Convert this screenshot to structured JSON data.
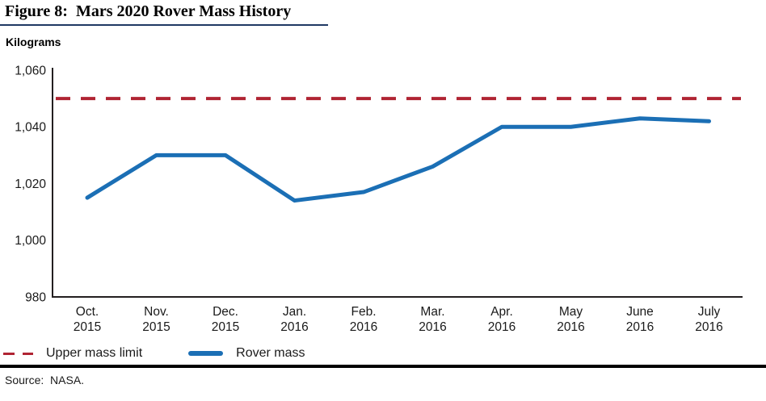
{
  "figure": {
    "title": "Figure 8:  Mars 2020 Rover Mass History",
    "unit_label": "Kilograms",
    "source": "Source:  NASA."
  },
  "legend": {
    "items": [
      {
        "label": "Upper mass limit",
        "style": "dashed",
        "color": "#b02433"
      },
      {
        "label": "Rover mass",
        "style": "solid",
        "color": "#1b6fb5"
      }
    ]
  },
  "colors": {
    "rover_mass_line": "#1b6fb5",
    "upper_mass_limit_line": "#b02433",
    "axis": "#231f20",
    "tick_text": "#1a1a1a",
    "title_rule": "#1f3864",
    "divider": "#000000"
  },
  "chart_data": {
    "type": "line",
    "title": "Figure 8:  Mars 2020 Rover Mass History",
    "ylabel": "Kilograms",
    "categories": [
      "Oct. 2015",
      "Nov. 2015",
      "Dec. 2015",
      "Jan. 2016",
      "Feb. 2016",
      "Mar. 2016",
      "Apr. 2016",
      "May 2016",
      "June 2016",
      "July 2016"
    ],
    "category_lines": [
      [
        "Oct.",
        "2015"
      ],
      [
        "Nov.",
        "2015"
      ],
      [
        "Dec.",
        "2015"
      ],
      [
        "Jan.",
        "2016"
      ],
      [
        "Feb.",
        "2016"
      ],
      [
        "Mar.",
        "2016"
      ],
      [
        "Apr.",
        "2016"
      ],
      [
        "May",
        "2016"
      ],
      [
        "June",
        "2016"
      ],
      [
        "July",
        "2016"
      ]
    ],
    "series": [
      {
        "name": "Rover mass",
        "style": "solid",
        "color": "#1b6fb5",
        "values": [
          1015,
          1030,
          1030,
          1014,
          1017,
          1026,
          1040,
          1040,
          1043,
          1042
        ]
      },
      {
        "name": "Upper mass limit",
        "style": "dashed",
        "color": "#b02433",
        "constant": 1050
      }
    ],
    "ylim": [
      980,
      1060
    ],
    "yticks": [
      980,
      1000,
      1020,
      1040,
      1060
    ],
    "ytick_labels": [
      "980",
      "1,000",
      "1,020",
      "1,040",
      "1,060"
    ],
    "grid": false,
    "legend_position": "bottom-left"
  }
}
